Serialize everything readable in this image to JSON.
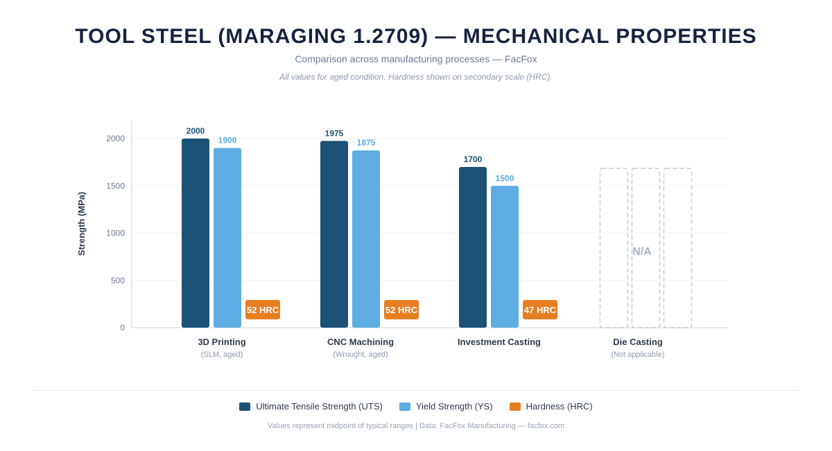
{
  "header": {
    "title": "TOOL STEEL (MARAGING 1.2709) — MECHANICAL PROPERTIES",
    "subtitle": "Comparison across manufacturing processes — FacFox",
    "note": "All values for aged condition. Hardness shown on secondary scale (HRC)."
  },
  "colors": {
    "uts": "#1b5276",
    "ys": "#5dade2",
    "hrc": "#e67e22",
    "na": "#c4cad6"
  },
  "chart_data": {
    "type": "bar",
    "title": "TOOL STEEL (MARAGING 1.2709) — MECHANICAL PROPERTIES",
    "ylabel": "Strength (MPa)",
    "xlabel": "",
    "ylim": [
      0,
      2200
    ],
    "yticks": [
      0,
      500,
      1000,
      1500,
      2000
    ],
    "grid": true,
    "legend_position": "bottom",
    "categories": [
      {
        "label": "3D Printing",
        "sublabel": "(SLM, aged)"
      },
      {
        "label": "CNC Machining",
        "sublabel": "(Wrought, aged)"
      },
      {
        "label": "Investment Casting",
        "sublabel": ""
      },
      {
        "label": "Die Casting",
        "sublabel": "(Not applicable)"
      }
    ],
    "series": [
      {
        "name": "Ultimate Tensile Strength (UTS)",
        "key": "uts",
        "values": [
          2000,
          1975,
          1700,
          null
        ]
      },
      {
        "name": "Yield Strength (YS)",
        "key": "ys",
        "values": [
          1900,
          1875,
          1500,
          null
        ]
      },
      {
        "name": "Hardness (HRC)",
        "key": "hrc",
        "values": [
          52,
          52,
          47,
          null
        ],
        "unit": "HRC"
      }
    ],
    "na_label": "N/A"
  },
  "legend": [
    {
      "label": "Ultimate Tensile Strength (UTS)",
      "key": "uts"
    },
    {
      "label": "Yield Strength (YS)",
      "key": "ys"
    },
    {
      "label": "Hardness (HRC)",
      "key": "hrc"
    }
  ],
  "footer": "Values represent midpoint of typical ranges | Data: FacFox Manufacturing — facfox.com"
}
